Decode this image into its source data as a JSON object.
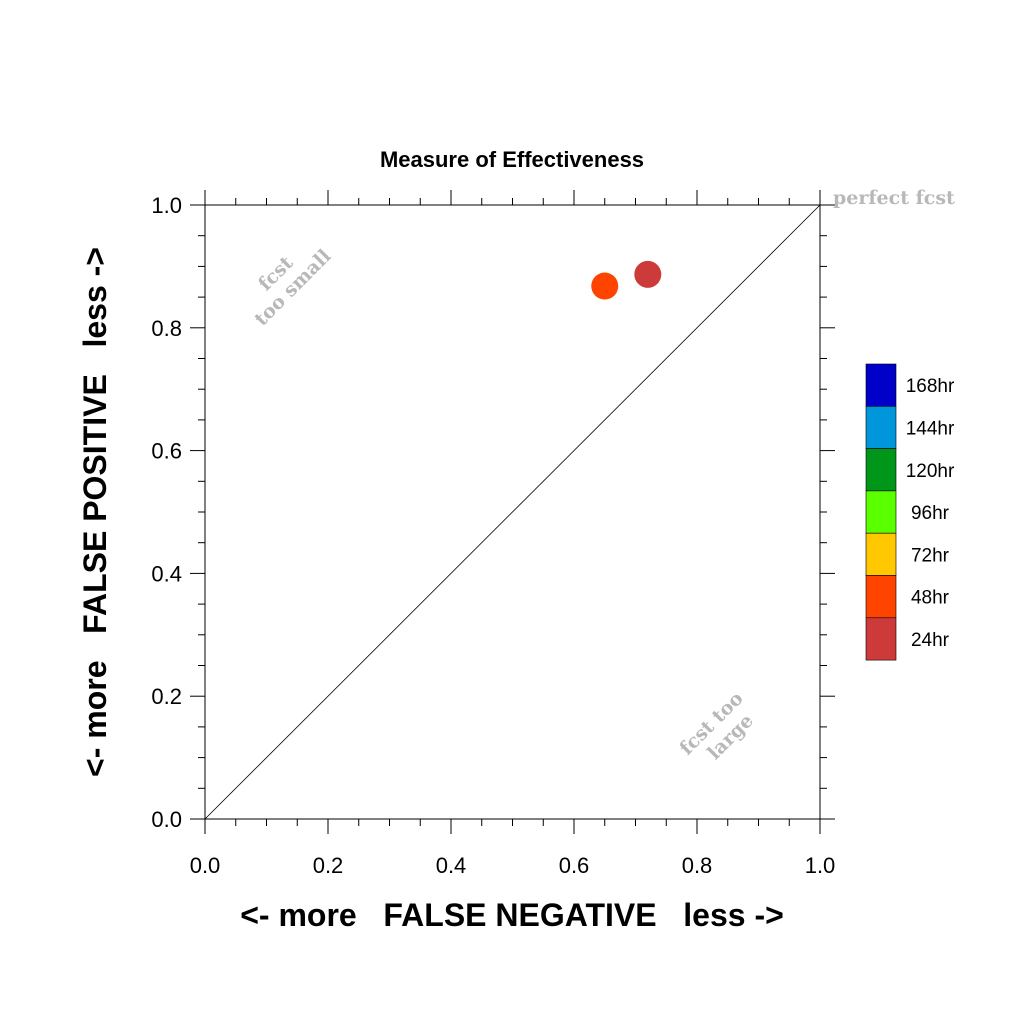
{
  "chart_data": {
    "type": "scatter",
    "title": "Measure of Effectiveness",
    "xlabel": "<- more   FALSE NEGATIVE   less ->",
    "ylabel": "<- more   FALSE POSITIVE   less ->",
    "xlim": [
      0.0,
      1.0
    ],
    "ylim": [
      0.0,
      1.0
    ],
    "xticks": [
      "0.0",
      "0.2",
      "0.4",
      "0.6",
      "0.8",
      "1.0"
    ],
    "yticks": [
      "0.0",
      "0.2",
      "0.4",
      "0.6",
      "0.8",
      "1.0"
    ],
    "grid": false,
    "diagonal_line": true,
    "points": [
      {
        "label": "24hr",
        "x": 0.72,
        "y": 0.887,
        "color": "#cc3a3a"
      },
      {
        "label": "48hr",
        "x": 0.65,
        "y": 0.868,
        "color": "#ff4400"
      }
    ],
    "annotations": {
      "perfect": "perfect fcst",
      "too_small_1": "fcst",
      "too_small_2": "too small",
      "too_large_1": "fcst too",
      "too_large_2": "large"
    },
    "legend": {
      "placement": "right",
      "items": [
        {
          "label": "168hr",
          "color": "#0000c8"
        },
        {
          "label": "144hr",
          "color": "#0096dc"
        },
        {
          "label": "120hr",
          "color": "#009619"
        },
        {
          "label": "96hr",
          "color": "#5aff00"
        },
        {
          "label": "72hr",
          "color": "#ffc800"
        },
        {
          "label": "48hr",
          "color": "#ff4400"
        },
        {
          "label": "24hr",
          "color": "#cc3a3a"
        }
      ]
    }
  }
}
